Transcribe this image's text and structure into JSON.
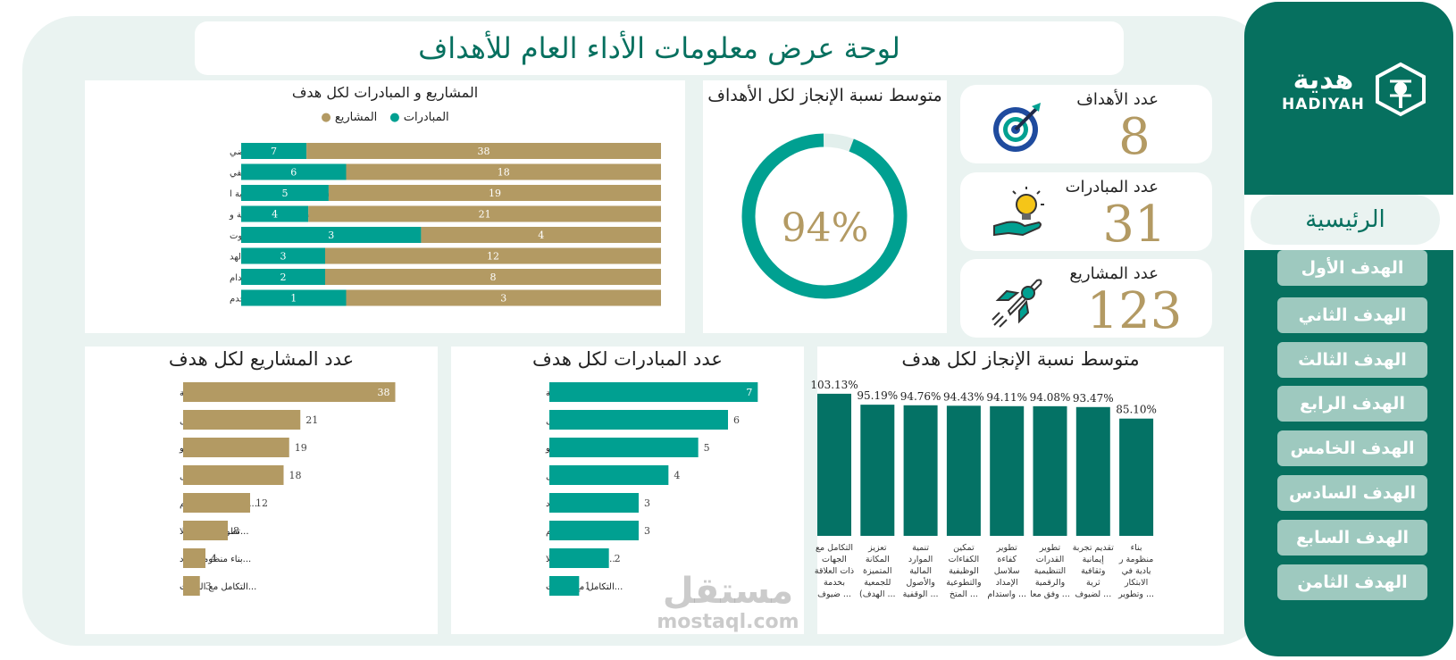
{
  "title": "لوحة عرض معلومات الأداء العام للأهداف",
  "brand": {
    "name_ar": "هدية",
    "name_en": "HADIYAH"
  },
  "nav": {
    "home": "الرئيسية",
    "items": [
      "الهدف الأول",
      "الهدف الثاني",
      "الهدف الثالث",
      "الهدف الرابع",
      "الهدف الخامس",
      "الهدف السادس",
      "الهدف السابع",
      "الهدف الثامن"
    ]
  },
  "kpis": {
    "goals": {
      "label": "عدد الأهداف",
      "value": "8",
      "icon": "target-icon"
    },
    "initiatives": {
      "label": "عدد المبادرات",
      "value": "31",
      "icon": "lightbulb-hand-icon"
    },
    "projects": {
      "label": "عدد المشاريع",
      "value": "123",
      "icon": "rocket-icon"
    }
  },
  "colors": {
    "teal": "#00a091",
    "dark_teal": "#06705f",
    "gold": "#b39a63",
    "light_bg": "#eaf3f1"
  },
  "watermark": {
    "ar": "مستقل",
    "en": "mostaql.com"
  },
  "chart_data": [
    {
      "type": "bar",
      "orientation": "horizontal-stacked-100",
      "title": "المشاريع و المبادرات لكل هدف",
      "legend": [
        "المبادرات",
        "المشاريع"
      ],
      "legend_position": "top",
      "categories": [
        "...تقديم تجربة إيمانية وثقافية ثرية لضي",
        "...تنمية الموارد المالية والأصول الوقفي",
        "...تمكين الكفاءات الوظيفية والتطوعية ا",
        "...تطوير القدرات التنظيمية والرقمية و",
        "...بناء منظومة ر يادية في الابتكار وت",
        "...تعزيز المكانة المتميزة للجمعية (الهد",
        "...تطوير كفاءة سلاسل الإمداد واستدام",
        "...التكامل مع الجهات ذات العلاقة بخدم"
      ],
      "series": [
        {
          "name": "المبادرات",
          "color": "#00a091",
          "values": [
            7,
            6,
            5,
            4,
            3,
            3,
            2,
            1
          ]
        },
        {
          "name": "المشاريع",
          "color": "#b39a63",
          "values": [
            38,
            18,
            19,
            21,
            4,
            12,
            8,
            3
          ]
        }
      ]
    },
    {
      "type": "pie",
      "variant": "donut",
      "title": "متوسط نسبة الإنجاز لكل الأهداف",
      "value": 94,
      "center_label": "94%",
      "colors": [
        "#00a091",
        "#e2efec"
      ]
    },
    {
      "type": "bar",
      "orientation": "horizontal",
      "title": "عدد المشاريع لكل هدف",
      "categories": [
        "...تقديم تجربة إيمانية",
        "...تطوير القدرات ال",
        "...تمكين الكفاءات الو",
        "...تنمية الموارد المال",
        "...تعزيز المكانة المتم",
        "...تطوير كفاءة سلا",
        "...بناء منظومة ر ياد",
        "...التكامل مع الجهات"
      ],
      "values": [
        38,
        21,
        19,
        18,
        12,
        8,
        4,
        3
      ],
      "xlim": [
        0,
        40
      ],
      "color": "#b39a63"
    },
    {
      "type": "bar",
      "orientation": "horizontal",
      "title": "عدد المبادرات لكل هدف",
      "categories": [
        "...تقديم تجربة إيمانية",
        "...تنمية الموارد المال",
        "...تمكين الكفاءات الو",
        "...تطوير القدرات ال",
        "...بناء منظومة ر ياد",
        "...تعزيز المكانة المتم",
        "...تطوير كفاءة سلا",
        "...التكامل مع الجهات"
      ],
      "values": [
        7,
        6,
        5,
        4,
        3,
        3,
        2,
        1
      ],
      "xlim": [
        0,
        7.5
      ],
      "color": "#00a091"
    },
    {
      "type": "bar",
      "orientation": "vertical",
      "title": "متوسط نسبة الإنجاز لكل هدف",
      "categories": [
        [
          "التكامل مع",
          "الجهات",
          "ذات العلاقة",
          "بخدمة",
          "... ضيوف"
        ],
        [
          "تعزيز",
          "المكانة",
          "المتميزة",
          "للجمعية",
          "... الهدف)"
        ],
        [
          "تنمية",
          "الموارد",
          "المالية",
          "والأصول",
          "... الوقفية"
        ],
        [
          "تمكين",
          "الكفاءات",
          "الوظيفية",
          "والتطوعية",
          "... المتخ"
        ],
        [
          "تطوير",
          "كفاءة",
          "سلاسل",
          "الإمداد",
          "... واستدام"
        ],
        [
          "تطوير",
          "القدرات",
          "التنظيمية",
          "والرقمية",
          "... وفق معا"
        ],
        [
          "تقديم تجربة",
          "إيمانية",
          "وثقافية",
          "ثرية",
          "... لضيوف"
        ],
        [
          "بناء",
          "منظومة ر",
          "يادية في",
          "الابتكار",
          "... وتطوير"
        ]
      ],
      "values": [
        103.13,
        95.19,
        94.76,
        94.43,
        94.11,
        94.08,
        93.47,
        85.1
      ],
      "value_labels": [
        "103.13%",
        "95.19%",
        "94.76%",
        "94.43%",
        "94.11%",
        "94.08%",
        "93.47%",
        "85.10%"
      ],
      "ylim": [
        0,
        105
      ],
      "color": "#047265"
    }
  ]
}
